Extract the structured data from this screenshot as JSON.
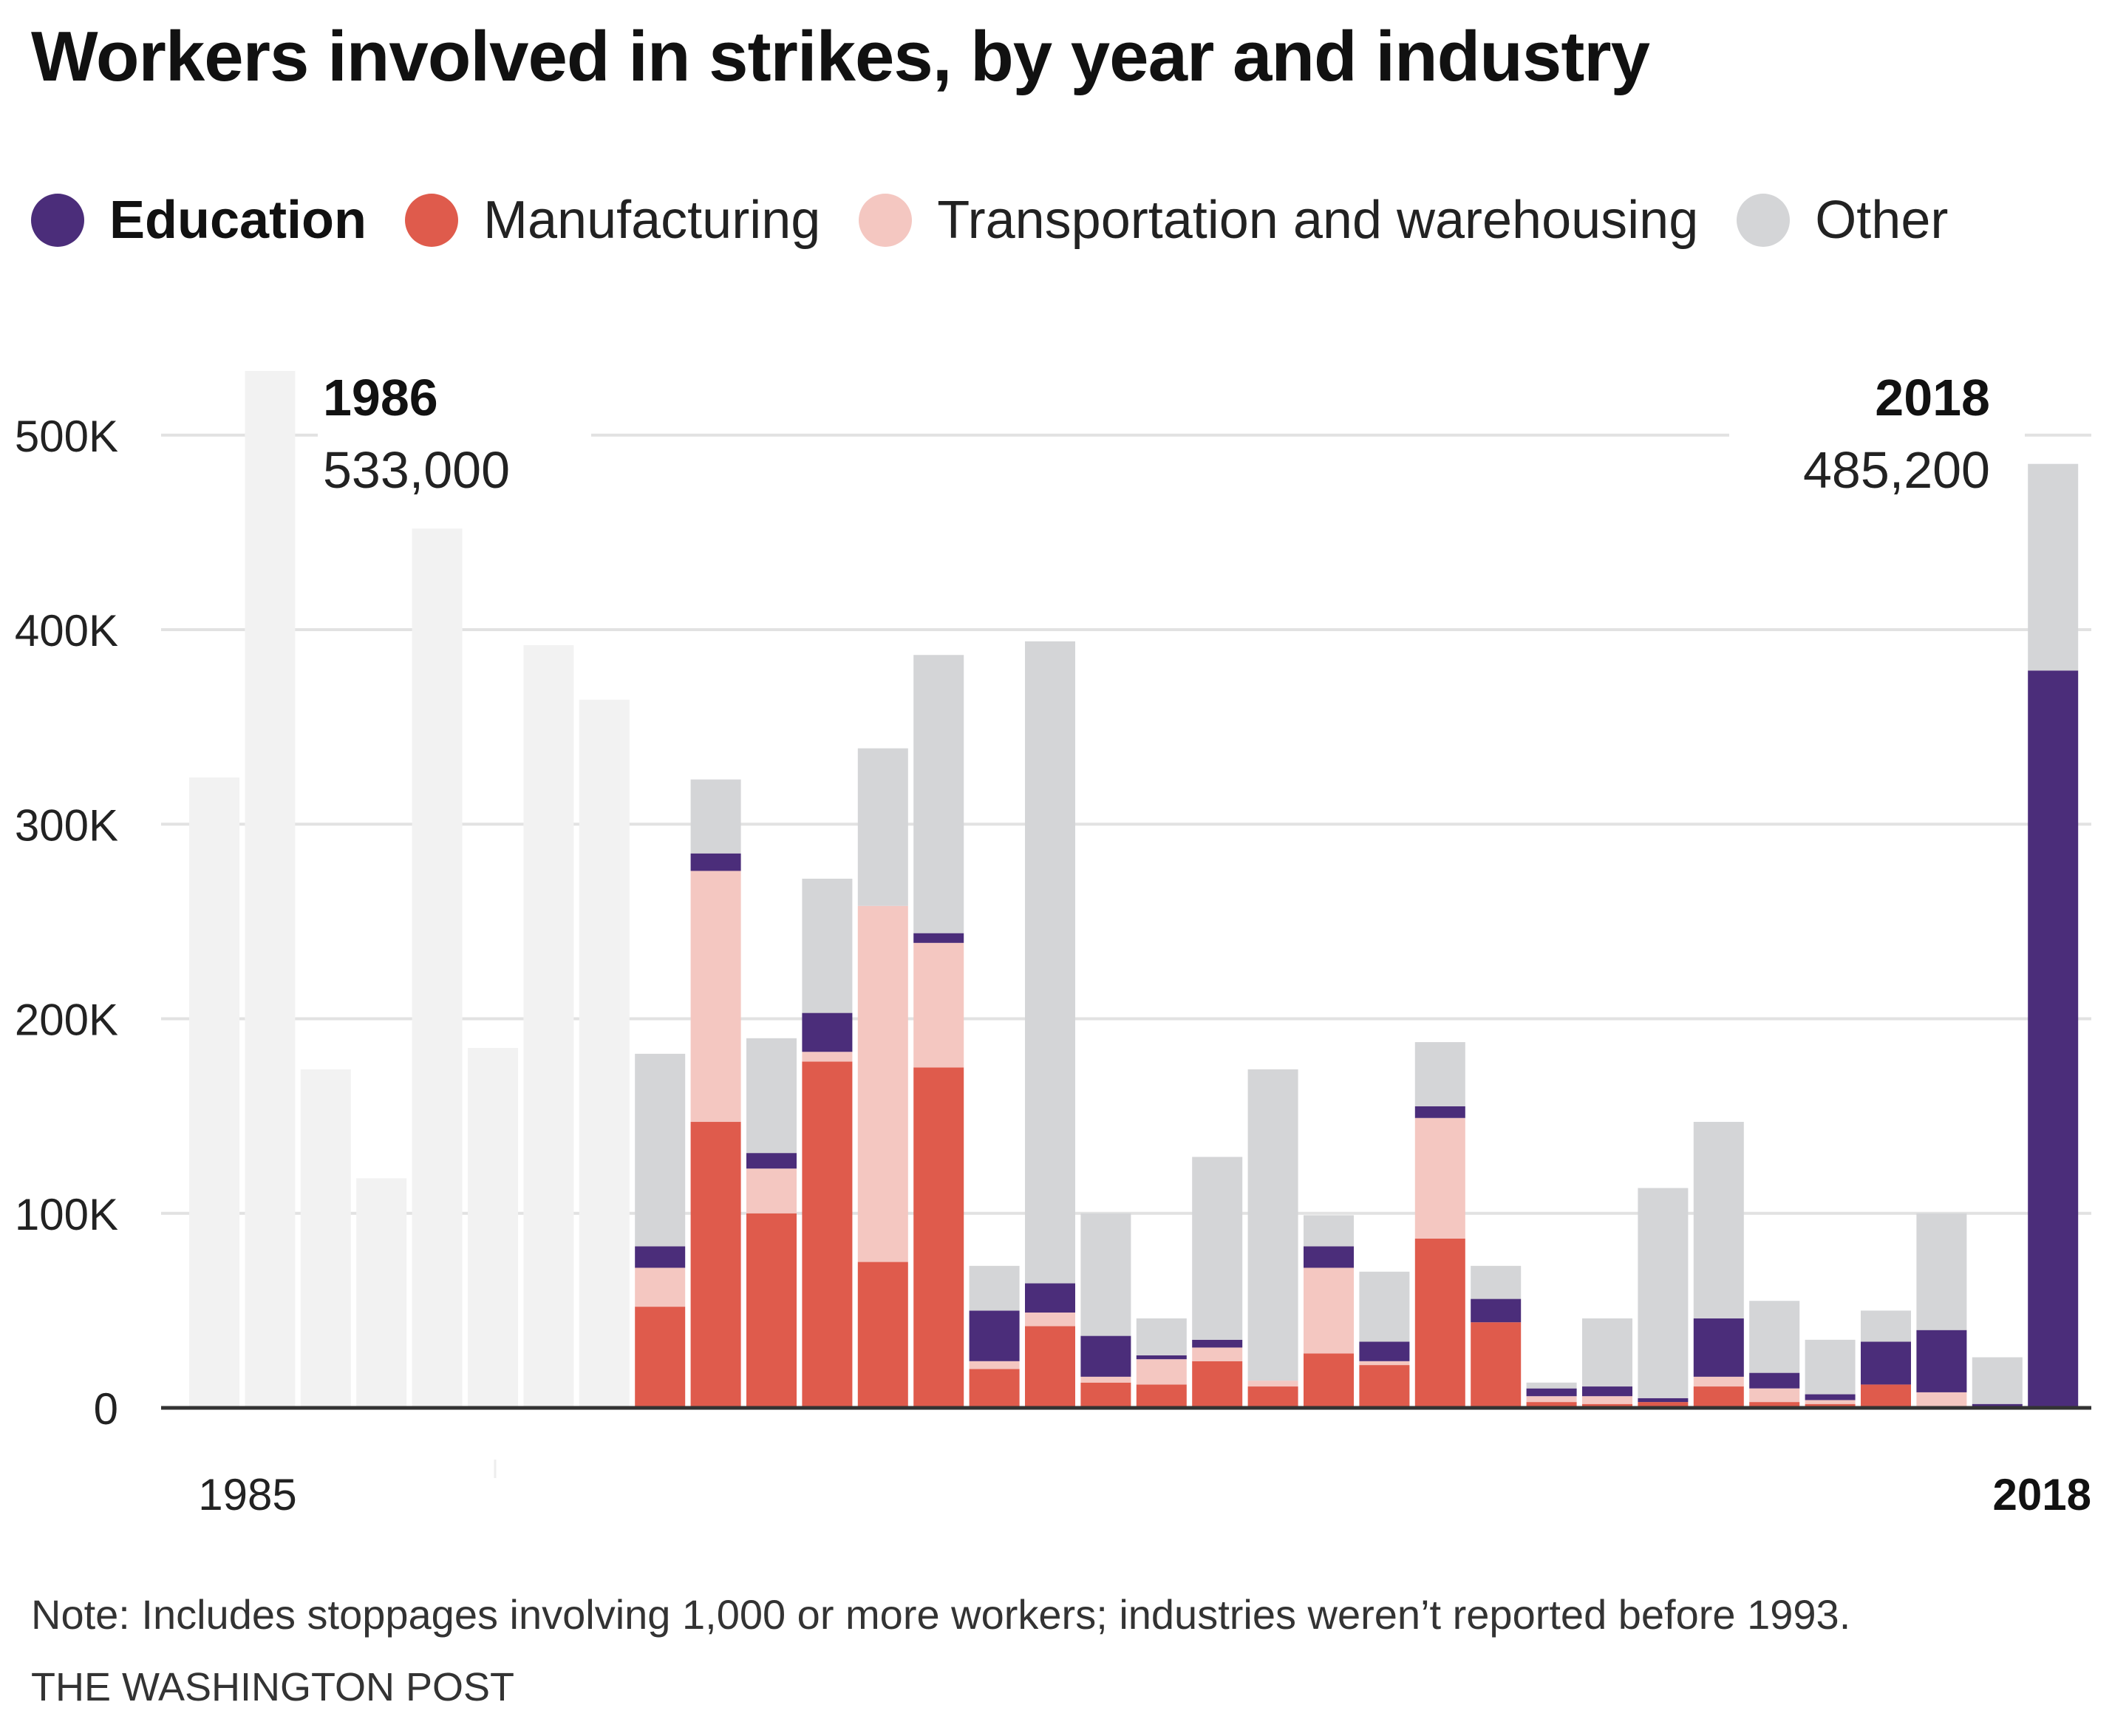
{
  "title": "Workers involved in strikes, by year and industry",
  "legend": [
    {
      "label": "Education",
      "color": "#4b2d7a",
      "bold": true
    },
    {
      "label": "Manufacturing",
      "color": "#df5b4c",
      "bold": false
    },
    {
      "label": "Transportation and warehousing",
      "color": "#f4c7c1",
      "bold": false
    },
    {
      "label": "Other",
      "color": "#d4d5d7",
      "bold": false
    }
  ],
  "chart_data": {
    "type": "bar",
    "stacked": true,
    "x": [
      1985,
      1986,
      1987,
      1988,
      1989,
      1990,
      1991,
      1992,
      1993,
      1994,
      1995,
      1996,
      1997,
      1998,
      1999,
      2000,
      2001,
      2002,
      2003,
      2004,
      2005,
      2006,
      2007,
      2008,
      2009,
      2010,
      2011,
      2012,
      2013,
      2014,
      2015,
      2016,
      2017,
      2018
    ],
    "totals_unreported": [
      324000,
      533000,
      174000,
      118000,
      452000,
      185000,
      392000,
      364000
    ],
    "unreported_color": "#f2f2f2",
    "series": [
      {
        "name": "Manufacturing",
        "color": "#df5b4c",
        "values": [
          null,
          null,
          null,
          null,
          null,
          null,
          null,
          null,
          52000,
          147000,
          100000,
          178000,
          75000,
          175000,
          20000,
          42000,
          13000,
          12000,
          24000,
          11000,
          28000,
          22000,
          87000,
          44000,
          3000,
          2000,
          3000,
          11000,
          3000,
          2000,
          12000,
          1000,
          0,
          0
        ]
      },
      {
        "name": "Transportation and warehousing",
        "color": "#f4c7c1",
        "values": [
          null,
          null,
          null,
          null,
          null,
          null,
          null,
          null,
          20000,
          129000,
          23000,
          5000,
          183000,
          64000,
          4000,
          7000,
          3000,
          13000,
          7000,
          3000,
          44000,
          2000,
          62000,
          0,
          3000,
          4000,
          0,
          5000,
          7000,
          2000,
          0,
          7000,
          0,
          0
        ]
      },
      {
        "name": "Education",
        "color": "#4b2d7a",
        "values": [
          null,
          null,
          null,
          null,
          null,
          null,
          null,
          null,
          11000,
          9000,
          8000,
          20000,
          0,
          5000,
          26000,
          15000,
          21000,
          2000,
          4000,
          0,
          11000,
          10000,
          6000,
          12000,
          4000,
          5000,
          2000,
          30000,
          8000,
          3000,
          22000,
          32000,
          2000,
          379000
        ]
      },
      {
        "name": "Other",
        "color": "#d4d5d7",
        "values": [
          null,
          null,
          null,
          null,
          null,
          null,
          null,
          null,
          99000,
          38000,
          59000,
          69000,
          81000,
          143000,
          23000,
          330000,
          63000,
          19000,
          94000,
          160000,
          16000,
          36000,
          33000,
          17000,
          3000,
          35000,
          108000,
          101000,
          37000,
          28000,
          16000,
          60000,
          24000,
          106200
        ]
      }
    ],
    "ylim": [
      0,
      560000
    ],
    "yticks": [
      0,
      100000,
      200000,
      300000,
      400000,
      500000
    ],
    "ytick_labels": [
      "0",
      "100K",
      "200K",
      "300K",
      "400K",
      "500K"
    ],
    "xtick_labels": [
      "1985",
      "2018"
    ],
    "annotations": [
      {
        "year_label": "1986",
        "value_label": "533,000"
      },
      {
        "year_label": "2018",
        "value_label": "485,200"
      }
    ]
  },
  "note": "Note: Includes stoppages involving 1,000 or more workers; industries weren’t reported before 1993.",
  "source": "THE WASHINGTON POST"
}
